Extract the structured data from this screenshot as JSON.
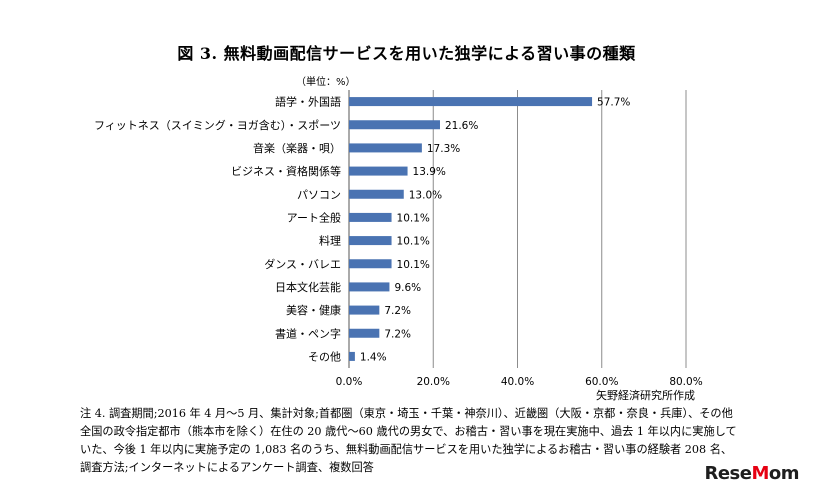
{
  "title": "図 3.  無料動画配信サービスを用いた独学による習い事の種類",
  "unit_label": "（単位：%）",
  "source": "矢野経済研究所作成",
  "notes": "注 4.  調査期間;2016 年 4 月～5 月、集計対象;首都圏（東京・埼玉・千葉・神奈川）、近畿圏（大阪・京都・奈良・兵庫）、その他全国の政令指定都市（熊本市を除く）在住の 20 歳代～60 歳代の男女で、お稽古・習い事を現在実施中、過去 1 年以内に実施していた、今後 1 年以内に実施予定の 1,083 名のうち、無料動画配信サービスを用いた独学によるお稽古・習い事の経験者 208 名、調査方法;インターネットによるアンケート調査、複数回答",
  "logo": {
    "text": "ReseMom",
    "accent": "#e60012"
  },
  "chart_data": {
    "type": "bar",
    "orientation": "horizontal",
    "categories": [
      "語学・外国語",
      "フィットネス（スイミング・ヨガ含む）・スポーツ",
      "音楽（楽器・唄）",
      "ビジネス・資格関係等",
      "パソコン",
      "アート全般",
      "料理",
      "ダンス・バレエ",
      "日本文化芸能",
      "美容・健康",
      "書道・ペン字",
      "その他"
    ],
    "values": [
      57.7,
      21.6,
      17.3,
      13.9,
      13.0,
      10.1,
      10.1,
      10.1,
      9.6,
      7.2,
      7.2,
      1.4
    ],
    "value_labels": [
      "57.7%",
      "21.6%",
      "17.3%",
      "13.9%",
      "13.0%",
      "10.1%",
      "10.1%",
      "10.1%",
      "9.6%",
      "7.2%",
      "7.2%",
      "1.4%"
    ],
    "xlim": [
      0,
      80
    ],
    "xticks": [
      0,
      20,
      40,
      60,
      80
    ],
    "xtick_labels": [
      "0.0%",
      "20.0%",
      "40.0%",
      "60.0%",
      "80.0%"
    ],
    "grid": true,
    "bar_color": "#4a73b2",
    "grid_color": "#8c8c8c"
  }
}
